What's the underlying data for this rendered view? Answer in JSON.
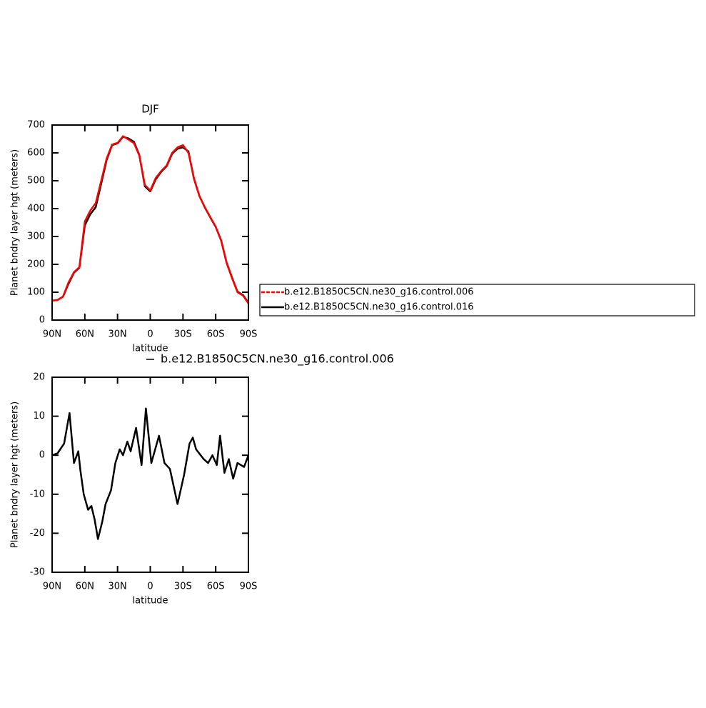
{
  "chart_data": [
    {
      "type": "line",
      "title": "DJF",
      "x_label": "latitude",
      "y_label": "Planet bndry layer hgt (meters)",
      "x": [
        90,
        85,
        80,
        75,
        70,
        65,
        60,
        55,
        50,
        45,
        40,
        35,
        30,
        25,
        20,
        15,
        10,
        5,
        0,
        -5,
        -10,
        -15,
        -20,
        -25,
        -30,
        -35,
        -40,
        -45,
        -50,
        -55,
        -60,
        -65,
        -70,
        -75,
        -80,
        -85,
        -90
      ],
      "series": [
        {
          "name": "b.e12.B1850C5CN.ne30_g16.control.006",
          "color": "#ff0000",
          "values": [
            70,
            72,
            85,
            135,
            172,
            190,
            354,
            393,
            420,
            500,
            580,
            630,
            636,
            660,
            648,
            635,
            590,
            485,
            465,
            510,
            535,
            555,
            600,
            620,
            628,
            600,
            510,
            445,
            405,
            370,
            335,
            285,
            205,
            150,
            100,
            88,
            60
          ]
        },
        {
          "name": "b.e12.B1850C5CN.ne30_g16.control.016",
          "color": "#000000",
          "values": [
            70,
            72,
            84,
            130,
            170,
            188,
            340,
            380,
            405,
            490,
            575,
            628,
            634,
            658,
            652,
            640,
            592,
            480,
            462,
            505,
            532,
            552,
            597,
            615,
            620,
            605,
            508,
            446,
            404,
            369,
            334,
            286,
            207,
            152,
            102,
            90,
            62
          ]
        }
      ],
      "xlim": [
        90,
        -90
      ],
      "xticks": [
        {
          "value": 90,
          "label": "90N"
        },
        {
          "value": 60,
          "label": "60N"
        },
        {
          "value": 30,
          "label": "30N"
        },
        0,
        {
          "value": -30,
          "label": "30S"
        },
        {
          "value": -60,
          "label": "60S"
        },
        {
          "value": -90,
          "label": "90S"
        }
      ],
      "ylim": [
        0,
        700
      ],
      "yticks": [
        0,
        100,
        200,
        300,
        400,
        500,
        600,
        700
      ]
    },
    {
      "type": "line",
      "x_label": "latitude",
      "y_label": "Planet bndry layer hgt (meters)",
      "x": [
        90,
        85,
        79,
        74,
        70,
        66,
        64,
        61,
        57,
        54,
        51,
        48,
        44,
        41,
        36,
        32,
        28,
        25,
        21,
        18,
        13,
        8,
        4,
        -1,
        -8,
        -13,
        -18,
        -25,
        -31,
        -36,
        -39,
        -42,
        -49,
        -53,
        -57,
        -61,
        -64,
        -68,
        -72,
        -76,
        -80,
        -86,
        -90
      ],
      "series": [
        {
          "name": "b.e12.B1850C5CN.ne30_g16.control.006",
          "color": "#000000",
          "values": [
            0,
            0.5,
            3,
            10.8,
            -2,
            1,
            -4,
            -10,
            -14,
            -13,
            -16.5,
            -21.5,
            -17,
            -12.5,
            -9,
            -2,
            1.5,
            0,
            3.5,
            1,
            7,
            -2.5,
            12,
            -2,
            5,
            -2,
            -3.5,
            -12.5,
            -5,
            3,
            4.5,
            1.5,
            -1,
            -2,
            0,
            -2.5,
            5,
            -4.5,
            -1,
            -6,
            -2,
            -3,
            0
          ]
        }
      ],
      "xlim": [
        90,
        -90
      ],
      "xticks": [
        {
          "value": 90,
          "label": "90N"
        },
        {
          "value": 60,
          "label": "60N"
        },
        {
          "value": 30,
          "label": "30N"
        },
        0,
        {
          "value": -30,
          "label": "30S"
        },
        {
          "value": -60,
          "label": "60S"
        },
        {
          "value": -90,
          "label": "90S"
        }
      ],
      "ylim": [
        -30,
        20
      ],
      "yticks": [
        -30,
        -20,
        -10,
        0,
        10,
        20
      ]
    }
  ]
}
